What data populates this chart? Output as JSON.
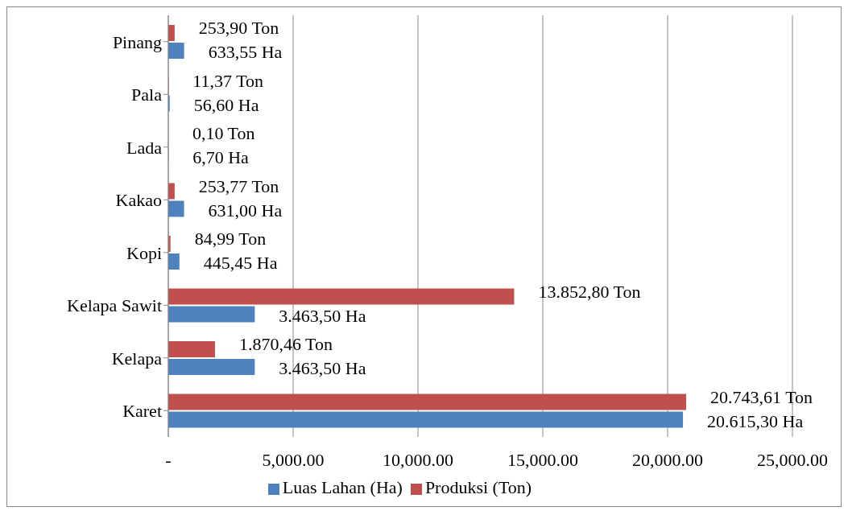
{
  "chart_data": {
    "type": "bar",
    "orientation": "horizontal",
    "categories": [
      "Pinang",
      "Pala",
      "Lada",
      "Kakao",
      "Kopi",
      "Kelapa Sawit",
      "Kelapa",
      "Karet"
    ],
    "series": [
      {
        "name": "Produksi (Ton)",
        "color": "#c0504d",
        "values": [
          253.9,
          11.37,
          0.1,
          253.77,
          84.99,
          13852.8,
          1870.46,
          20743.61
        ],
        "value_labels": [
          "253,90 Ton",
          "11,37 Ton",
          "0,10 Ton",
          "253,77 Ton",
          "84,99 Ton",
          "13.852,80 Ton",
          "1.870,46 Ton",
          "20.743,61 Ton"
        ]
      },
      {
        "name": "Luas Lahan (Ha)",
        "color": "#4f81bd",
        "values": [
          633.55,
          56.6,
          6.7,
          631.0,
          445.45,
          3463.5,
          3463.5,
          20615.3
        ],
        "value_labels": [
          "633,55 Ha",
          "56,60 Ha",
          "6,70 Ha",
          "631,00 Ha",
          "445,45 Ha",
          "3.463,50 Ha",
          "3.463,50 Ha",
          "20.615,30 Ha"
        ]
      }
    ],
    "xlim": [
      0,
      25000
    ],
    "xticks": [
      {
        "value": 0,
        "label": "-"
      },
      {
        "value": 5000,
        "label": "5,000.00"
      },
      {
        "value": 10000,
        "label": "10,000.00"
      },
      {
        "value": 15000,
        "label": "15,000.00"
      },
      {
        "value": 20000,
        "label": "20,000.00"
      },
      {
        "value": 25000,
        "label": "25,000.00"
      }
    ],
    "grid": "x",
    "legend": "bottom"
  }
}
